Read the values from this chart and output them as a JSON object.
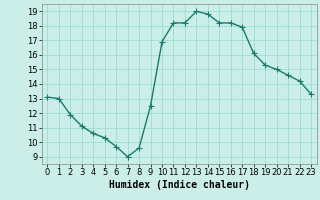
{
  "x": [
    0,
    1,
    2,
    3,
    4,
    5,
    6,
    7,
    8,
    9,
    10,
    11,
    12,
    13,
    14,
    15,
    16,
    17,
    18,
    19,
    20,
    21,
    22,
    23
  ],
  "y": [
    13.1,
    13.0,
    11.9,
    11.1,
    10.6,
    10.3,
    9.7,
    9.0,
    9.6,
    12.5,
    16.9,
    18.2,
    18.2,
    19.0,
    18.8,
    18.2,
    18.2,
    17.9,
    16.1,
    15.3,
    15.0,
    14.6,
    14.2,
    13.3
  ],
  "line_color": "#1a7a6e",
  "marker": "+",
  "markersize": 4,
  "linewidth": 1.0,
  "bg_color": "#cceee8",
  "grid_color": "#99ddd4",
  "xlabel": "Humidex (Indice chaleur)",
  "xlabel_fontsize": 7,
  "tick_fontsize": 6,
  "xlim": [
    -0.5,
    23.5
  ],
  "ylim": [
    8.5,
    19.5
  ],
  "yticks": [
    9,
    10,
    11,
    12,
    13,
    14,
    15,
    16,
    17,
    18,
    19
  ],
  "xticks": [
    0,
    1,
    2,
    3,
    4,
    5,
    6,
    7,
    8,
    9,
    10,
    11,
    12,
    13,
    14,
    15,
    16,
    17,
    18,
    19,
    20,
    21,
    22,
    23
  ]
}
